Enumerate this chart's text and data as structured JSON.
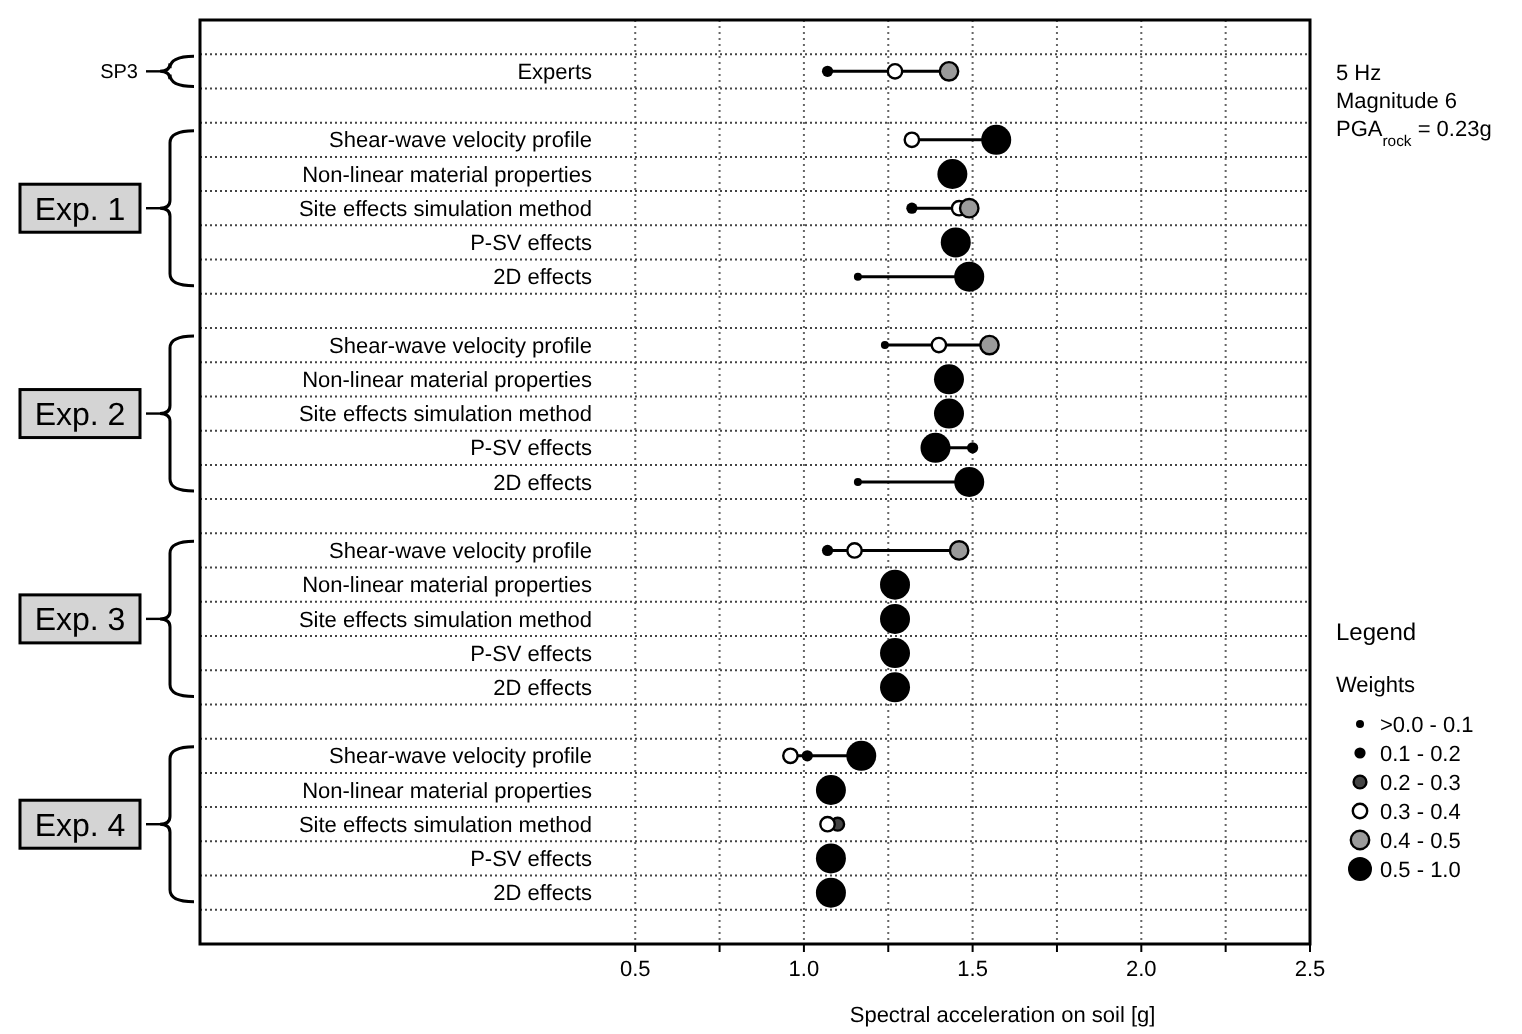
{
  "chart_data": {
    "type": "scatter",
    "orientation": "horizontal",
    "xlabel": "Spectral acceleration on soil [g]",
    "categories": [
      null,
      "Experts",
      null,
      "Shear-wave velocity profile",
      "Non-linear material properties",
      "Site effects simulation method",
      "P-SV effects",
      "2D effects",
      null,
      "Shear-wave velocity profile",
      "Non-linear material properties",
      "Site effects simulation method",
      "P-SV effects",
      "2D effects",
      null,
      "Shear-wave velocity profile",
      "Non-linear material properties",
      "Site effects simulation method",
      "P-SV effects",
      "2D effects",
      null,
      "Shear-wave velocity profile",
      "Non-linear material properties",
      "Site effects simulation method",
      "P-SV effects",
      "2D effects",
      null
    ],
    "xlim": [
      -0.79,
      2.5
    ],
    "xticks": [
      0.5,
      {
        "value": 0.75,
        "label": null
      },
      {
        "value": 1,
        "label": "1.0"
      },
      {
        "value": 1.25,
        "label": null
      },
      1.5,
      {
        "value": 1.75,
        "label": null
      },
      {
        "value": 2,
        "label": "2.0"
      },
      {
        "value": 2.25,
        "label": null
      },
      2.5
    ],
    "grid": true,
    "legend": "right",
    "legend_title": "Weights",
    "annotations": [
      "SP3",
      "Exp. 1",
      "Exp. 2",
      "Exp. 3",
      "Exp. 4",
      "5 Hz",
      "Magnitude 6",
      "PGA$_{rock}$ = 0.23g",
      "Legend"
    ],
    "series": [
      {
        "name": ">0.0 - 0.1",
        "color": "#000000",
        "values": [
          null,
          null,
          null,
          null,
          null,
          null,
          null,
          1.16,
          null,
          1.24,
          null,
          null,
          null,
          1.16,
          null,
          null,
          null,
          null,
          null,
          null,
          null,
          null,
          null,
          null,
          null,
          null,
          null
        ]
      },
      {
        "name": "0.1 - 0.2",
        "color": "#000000",
        "values": [
          null,
          1.07,
          null,
          null,
          null,
          1.32,
          null,
          null,
          null,
          null,
          null,
          null,
          1.5,
          null,
          null,
          1.07,
          null,
          null,
          null,
          null,
          null,
          1.01,
          null,
          null,
          null,
          null,
          null
        ]
      },
      {
        "name": "0.2 - 0.3",
        "color": "#444444",
        "values": [
          null,
          null,
          null,
          null,
          null,
          null,
          null,
          null,
          null,
          null,
          null,
          null,
          null,
          null,
          null,
          null,
          null,
          null,
          null,
          null,
          null,
          null,
          null,
          1.1,
          null,
          null,
          null
        ]
      },
      {
        "name": "0.3 - 0.4",
        "color": "#ffffff",
        "values": [
          null,
          1.27,
          null,
          1.32,
          null,
          1.46,
          null,
          null,
          null,
          1.4,
          null,
          null,
          null,
          null,
          null,
          1.15,
          null,
          null,
          null,
          null,
          null,
          0.96,
          null,
          1.07,
          null,
          null,
          null
        ]
      },
      {
        "name": "0.4 - 0.5",
        "color": "#9a9a9a",
        "values": [
          null,
          1.43,
          null,
          null,
          null,
          1.49,
          null,
          null,
          null,
          1.55,
          null,
          null,
          null,
          null,
          null,
          1.46,
          null,
          null,
          null,
          null,
          null,
          null,
          null,
          null,
          null,
          null,
          null
        ]
      },
      {
        "name": "0.5 - 1.0",
        "color": "#000000",
        "values": [
          null,
          null,
          null,
          1.57,
          1.44,
          null,
          1.45,
          1.49,
          null,
          null,
          1.43,
          1.43,
          1.39,
          1.49,
          null,
          null,
          1.27,
          1.27,
          1.27,
          1.27,
          null,
          1.17,
          1.08,
          null,
          1.08,
          1.08,
          null
        ]
      }
    ]
  }
}
